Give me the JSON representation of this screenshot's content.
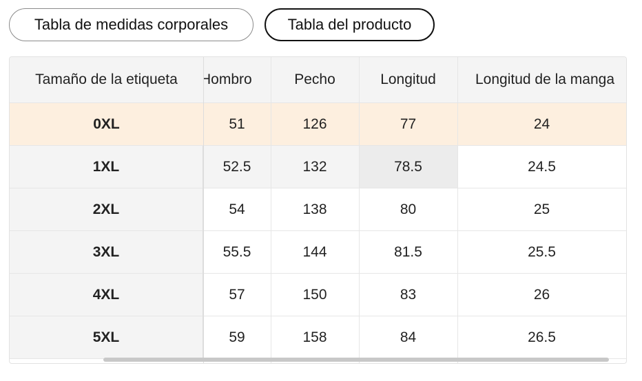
{
  "tabs": {
    "body_measurements": "Tabla de medidas corporales",
    "product_table": "Tabla del producto"
  },
  "table": {
    "headers": [
      "Tamaño de la etiqueta",
      "Hombro",
      "Pecho",
      "Longitud",
      "Longitud de la manga"
    ],
    "rows": [
      [
        "0XL",
        "51",
        "126",
        "77",
        "24"
      ],
      [
        "1XL",
        "52.5",
        "132",
        "78.5",
        "24.5"
      ],
      [
        "2XL",
        "54",
        "138",
        "80",
        "25"
      ],
      [
        "3XL",
        "55.5",
        "144",
        "81.5",
        "25.5"
      ],
      [
        "4XL",
        "57",
        "150",
        "83",
        "26"
      ],
      [
        "5XL",
        "59",
        "158",
        "84",
        "26.5"
      ]
    ],
    "highlighted_row": 0,
    "highlight_color": "#fdefdf"
  }
}
